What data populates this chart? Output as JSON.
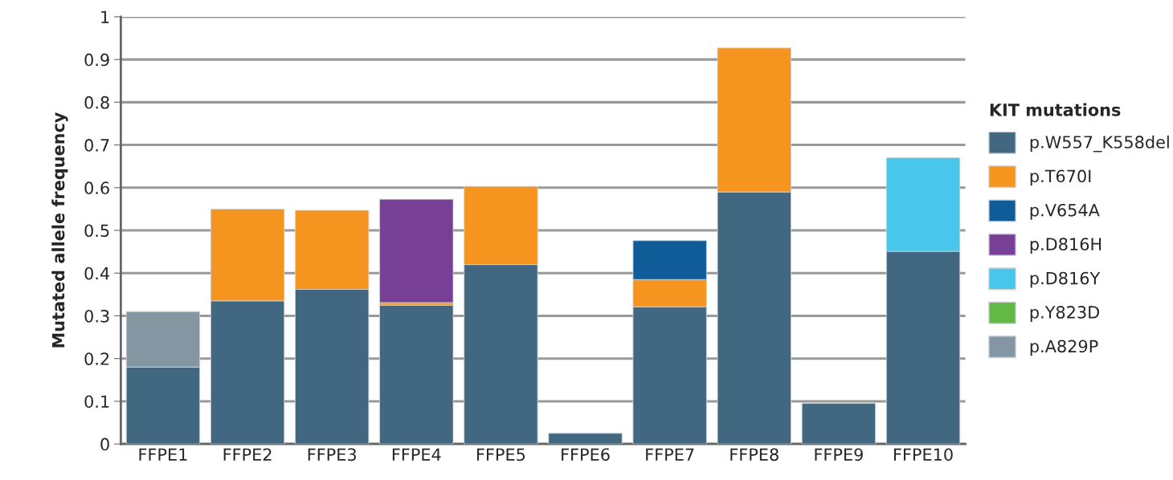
{
  "chart_data": {
    "type": "bar",
    "stacked": true,
    "ylabel": "Mutated allele frequency",
    "legend_title": "KIT mutations",
    "legend": "right",
    "grid": "y",
    "categories": [
      "FFPE1",
      "FFPE2",
      "FFPE3",
      "FFPE4",
      "FFPE5",
      "FFPE6",
      "FFPE7",
      "FFPE8",
      "FFPE9",
      "FFPE10"
    ],
    "ylim": [
      0,
      1
    ],
    "yticks": [
      0,
      0.1,
      0.2,
      0.3,
      0.4,
      0.5,
      0.6,
      0.7,
      0.8,
      0.9,
      1
    ],
    "series": [
      {
        "name": "p.W557_K558del",
        "color": "#426781",
        "values": [
          0.18,
          0.335,
          0.362,
          0.325,
          0.42,
          0.025,
          0.321,
          0.59,
          0.095,
          0.451
        ]
      },
      {
        "name": "p.T670I",
        "color": "#f5951f",
        "values": [
          0,
          0.215,
          0.185,
          0.006,
          0.183,
          0,
          0.064,
          0.337,
          0,
          0
        ]
      },
      {
        "name": "p.V654A",
        "color": "#0f5c99",
        "values": [
          0,
          0,
          0,
          0,
          0,
          0,
          0.091,
          0,
          0,
          0
        ]
      },
      {
        "name": "p.D816H",
        "color": "#773f96",
        "values": [
          0,
          0,
          0,
          0.242,
          0,
          0,
          0,
          0,
          0,
          0
        ]
      },
      {
        "name": "p.D816Y",
        "color": "#48c6ec",
        "values": [
          0,
          0,
          0,
          0,
          0,
          0,
          0,
          0,
          0,
          0.219
        ]
      },
      {
        "name": "p.Y823D",
        "color": "#62b946",
        "values": [
          0,
          0,
          0,
          0,
          0,
          0,
          0,
          0,
          0,
          0
        ]
      },
      {
        "name": "p.A829P",
        "color": "#8596a3",
        "values": [
          0.13,
          0,
          0,
          0,
          0,
          0,
          0,
          0,
          0,
          0
        ]
      }
    ]
  }
}
